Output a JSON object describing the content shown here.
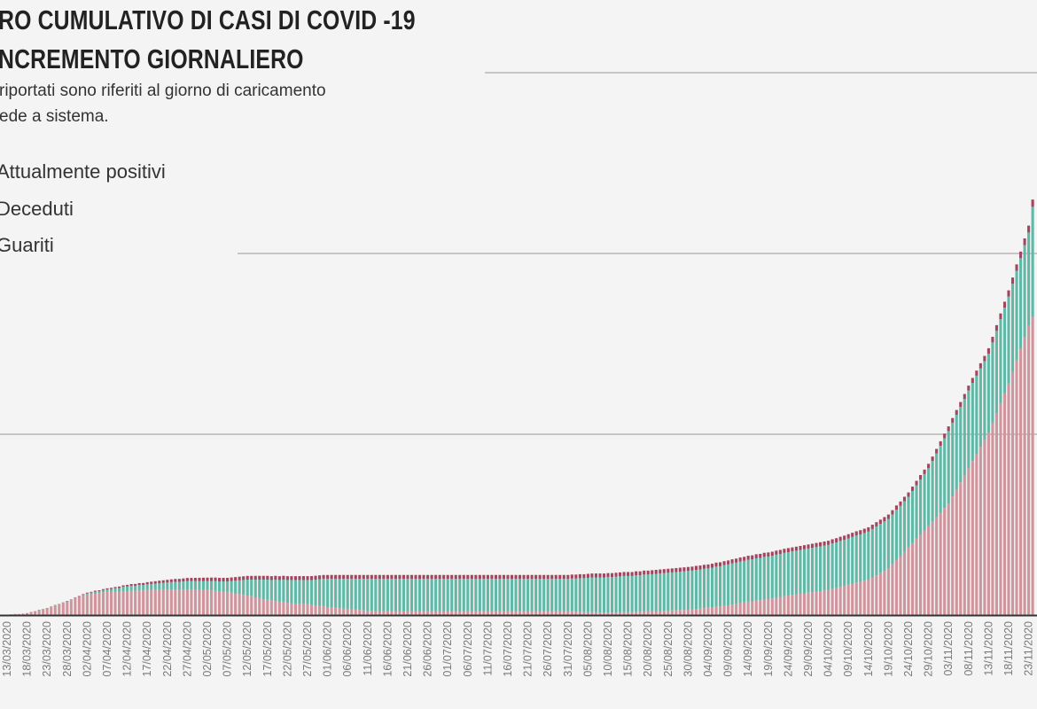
{
  "header": {
    "title_line1": "RO CUMULATIVO DI CASI DI COVID -19",
    "title_line2": "NCREMENTO GIORNALIERO",
    "subtitle_line1": "riportati sono riferiti al giorno di caricamento",
    "subtitle_line2": "ede a sistema."
  },
  "legend": [
    {
      "label": "Attualmente positivi",
      "color": "#cf949c"
    },
    {
      "label": "Deceduti",
      "color": "#a3455f"
    },
    {
      "label": "Guariti",
      "color": "#62b8a7"
    }
  ],
  "chart_data": {
    "type": "bar",
    "stacked": true,
    "stack_order_bottom_to_top": [
      "Attualmente positivi",
      "Guariti",
      "Deceduti"
    ],
    "grid": true,
    "ylim": [
      0,
      150000
    ],
    "y_gridlines": [
      50000,
      100000,
      150000
    ],
    "x_tick_labels": [
      "13/03/2020",
      "18/03/2020",
      "23/03/2020",
      "28/03/2020",
      "02/04/2020",
      "07/04/2020",
      "12/04/2020",
      "17/04/2020",
      "22/04/2020",
      "27/04/2020",
      "02/05/2020",
      "07/05/2020",
      "12/05/2020",
      "17/05/2020",
      "22/05/2020",
      "27/05/2020",
      "01/06/2020",
      "06/06/2020",
      "11/06/2020",
      "16/06/2020",
      "21/06/2020",
      "26/06/2020",
      "01/07/2020",
      "06/07/2020",
      "11/07/2020",
      "16/07/2020",
      "21/07/2020",
      "26/07/2020",
      "31/07/2020",
      "05/08/2020",
      "10/08/2020",
      "15/08/2020",
      "20/08/2020",
      "25/08/2020",
      "30/08/2020",
      "04/09/2020",
      "09/09/2020",
      "14/09/2020",
      "19/09/2020",
      "24/09/2020",
      "29/09/2020",
      "04/10/2020",
      "09/10/2020",
      "14/10/2020",
      "19/10/2020",
      "24/10/2020",
      "29/10/2020",
      "03/11/2020",
      "08/11/2020",
      "13/11/2020",
      "18/11/2020",
      "23/11/2020"
    ],
    "value_unit_multiplier": 1000,
    "series": [
      {
        "name": "Attualmente positivi",
        "color": "#cf949c",
        "values": [
          0.1,
          0.2,
          0.3,
          0.3,
          0.4,
          0.5,
          0.8,
          1.0,
          1.3,
          1.5,
          1.8,
          2.2,
          2.6,
          2.9,
          3.3,
          3.7,
          4.1,
          4.5,
          4.9,
          5.3,
          5.7,
          5.8,
          6.0,
          6.1,
          6.3,
          6.4,
          6.4,
          6.5,
          6.5,
          6.6,
          6.6,
          6.7,
          6.7,
          6.8,
          6.8,
          6.9,
          6.9,
          7.0,
          7.0,
          7.1,
          7.1,
          7.1,
          7.1,
          7.1,
          7.1,
          7.1,
          7.1,
          7.0,
          7.0,
          6.9,
          6.9,
          6.8,
          6.7,
          6.6,
          6.5,
          6.4,
          6.2,
          6.0,
          5.8,
          5.6,
          5.4,
          5.2,
          4.9,
          4.7,
          4.4,
          4.2,
          4.0,
          3.9,
          3.7,
          3.6,
          3.4,
          3.3,
          3.2,
          3.2,
          3.1,
          3.0,
          2.8,
          2.7,
          2.5,
          2.4,
          2.2,
          2.1,
          2.0,
          1.9,
          1.8,
          1.7,
          1.6,
          1.5,
          1.4,
          1.3,
          1.2,
          1.2,
          1.1,
          1.1,
          1.0,
          1.0,
          1.0,
          1.0,
          1.0,
          1.0,
          1.0,
          1.0,
          1.0,
          1.0,
          1.0,
          1.0,
          1.0,
          1.0,
          1.0,
          1.0,
          1.0,
          1.0,
          1.0,
          1.0,
          1.0,
          1.0,
          1.0,
          1.0,
          1.0,
          1.0,
          1.0,
          1.0,
          1.0,
          1.0,
          1.0,
          1.0,
          1.0,
          1.0,
          1.0,
          1.0,
          1.0,
          1.0,
          1.0,
          1.0,
          1.0,
          1.0,
          1.0,
          1.0,
          1.0,
          1.0,
          1.0,
          1.0,
          0.9,
          0.9,
          0.8,
          0.8,
          0.8,
          0.8,
          0.7,
          0.7,
          0.7,
          0.7,
          0.7,
          0.8,
          0.8,
          0.8,
          0.8,
          0.9,
          0.9,
          1.0,
          1.0,
          1.0,
          1.1,
          1.1,
          1.2,
          1.2,
          1.3,
          1.3,
          1.4,
          1.4,
          1.5,
          1.6,
          1.7,
          1.8,
          1.9,
          2.0,
          2.1,
          2.3,
          2.4,
          2.6,
          2.7,
          2.9,
          3.1,
          3.3,
          3.5,
          3.7,
          3.8,
          4.0,
          4.1,
          4.3,
          4.4,
          4.6,
          4.8,
          5.0,
          5.2,
          5.4,
          5.6,
          5.7,
          5.9,
          6.0,
          6.2,
          6.3,
          6.5,
          6.6,
          6.8,
          6.9,
          7.2,
          7.5,
          7.8,
          8.1,
          8.4,
          8.7,
          9.0,
          9.2,
          9.5,
          9.8,
          10.4,
          11.0,
          11.6,
          12.2,
          12.8,
          14.0,
          15.2,
          16.3,
          17.5,
          18.7,
          19.9,
          21.1,
          22.3,
          23.4,
          24.6,
          25.8,
          27.1,
          28.3,
          29.6,
          30.8,
          32.8,
          34.7,
          36.7,
          38.6,
          40.6,
          42.6,
          44.5,
          46.5,
          48.4,
          50.4,
          53.1,
          55.8,
          58.6,
          61.3,
          64.0,
          67.2,
          70.4,
          73.6,
          76.8,
          80.0,
          82.4
        ]
      },
      {
        "name": "Guariti",
        "color": "#62b8a7",
        "values": [
          0,
          0,
          0,
          0,
          0,
          0,
          0,
          0,
          0.1,
          0.1,
          0.1,
          0.1,
          0.1,
          0.1,
          0.1,
          0.1,
          0.1,
          0.2,
          0.2,
          0.3,
          0.3,
          0.4,
          0.5,
          0.5,
          0.6,
          0.7,
          0.8,
          0.9,
          1.0,
          1.2,
          1.3,
          1.4,
          1.4,
          1.5,
          1.5,
          1.6,
          1.7,
          1.7,
          1.8,
          1.8,
          1.9,
          2.0,
          2.1,
          2.1,
          2.2,
          2.3,
          2.3,
          2.4,
          2.4,
          2.5,
          2.5,
          2.6,
          2.7,
          2.7,
          2.8,
          2.9,
          3.2,
          3.5,
          3.8,
          4.1,
          4.4,
          4.6,
          4.9,
          5.1,
          5.4,
          5.6,
          5.7,
          5.9,
          6.0,
          6.2,
          6.3,
          6.4,
          6.5,
          6.5,
          6.6,
          6.7,
          6.9,
          7.1,
          7.4,
          7.6,
          7.8,
          7.9,
          8.0,
          8.1,
          8.2,
          8.3,
          8.4,
          8.5,
          8.6,
          8.7,
          8.8,
          8.8,
          8.9,
          8.9,
          9.0,
          9.0,
          9.0,
          9.0,
          9.0,
          9.0,
          9.0,
          9.0,
          9.0,
          9.0,
          9.0,
          9.0,
          9.0,
          9.0,
          9.0,
          9.0,
          9.0,
          9.0,
          9.0,
          9.0,
          9.0,
          9.0,
          9.0,
          9.0,
          9.0,
          9.0,
          9.0,
          9.0,
          9.0,
          9.0,
          9.0,
          9.0,
          9.0,
          9.0,
          9.0,
          9.0,
          9.0,
          9.0,
          9.0,
          9.0,
          9.0,
          9.0,
          9.0,
          9.0,
          9.0,
          9.0,
          9.0,
          9.1,
          9.2,
          9.3,
          9.4,
          9.5,
          9.6,
          9.6,
          9.7,
          9.7,
          9.8,
          9.8,
          9.9,
          9.9,
          10.0,
          10.0,
          10.0,
          10.1,
          10.1,
          10.2,
          10.2,
          10.3,
          10.3,
          10.4,
          10.4,
          10.5,
          10.5,
          10.6,
          10.6,
          10.7,
          10.7,
          10.7,
          10.8,
          10.8,
          10.9,
          10.9,
          11.0,
          11.1,
          11.1,
          11.2,
          11.3,
          11.4,
          11.4,
          11.5,
          11.5,
          11.6,
          11.6,
          11.7,
          11.7,
          11.8,
          11.8,
          11.8,
          11.9,
          11.9,
          12.0,
          12.0,
          12.0,
          12.1,
          12.1,
          12.2,
          12.2,
          12.3,
          12.3,
          12.4,
          12.4,
          12.5,
          12.6,
          12.6,
          12.7,
          12.7,
          12.8,
          12.9,
          13.0,
          13.1,
          13.2,
          13.3,
          13.4,
          13.5,
          13.6,
          13.7,
          13.8,
          13.8,
          13.9,
          13.9,
          14.0,
          14.0,
          14.4,
          14.8,
          15.2,
          15.6,
          16.0,
          16.8,
          17.6,
          18.5,
          19.3,
          20.1,
          20.4,
          20.7,
          20.9,
          21.2,
          21.5,
          21.6,
          21.7,
          21.7,
          21.8,
          21.9,
          22.3,
          22.8,
          23.2,
          23.7,
          24.1,
          24.4,
          24.8,
          25.1,
          25.5,
          25.8,
          30.5
        ]
      },
      {
        "name": "Deceduti",
        "color": "#a3455f",
        "values": [
          0,
          0,
          0,
          0,
          0,
          0.01,
          0.02,
          0.03,
          0.03,
          0.04,
          0.05,
          0.06,
          0.07,
          0.08,
          0.09,
          0.1,
          0.12,
          0.14,
          0.16,
          0.18,
          0.2,
          0.22,
          0.24,
          0.26,
          0.28,
          0.3,
          0.33,
          0.36,
          0.39,
          0.42,
          0.45,
          0.48,
          0.51,
          0.54,
          0.57,
          0.6,
          0.63,
          0.66,
          0.69,
          0.72,
          0.75,
          0.77,
          0.79,
          0.81,
          0.83,
          0.85,
          0.87,
          0.89,
          0.91,
          0.93,
          0.95,
          0.96,
          0.97,
          0.98,
          0.99,
          1.0,
          1.01,
          1.01,
          1.02,
          1.02,
          1.03,
          1.03,
          1.04,
          1.04,
          1.04,
          1.05,
          1.05,
          1.05,
          1.05,
          1.06,
          1.06,
          1.06,
          1.06,
          1.07,
          1.07,
          1.07,
          1.07,
          1.08,
          1.08,
          1.08,
          1.08,
          1.09,
          1.09,
          1.09,
          1.09,
          1.09,
          1.09,
          1.09,
          1.09,
          1.09,
          1.09,
          1.09,
          1.09,
          1.09,
          1.09,
          1.09,
          1.09,
          1.09,
          1.09,
          1.09,
          1.09,
          1.09,
          1.09,
          1.09,
          1.09,
          1.09,
          1.09,
          1.09,
          1.09,
          1.09,
          1.09,
          1.09,
          1.09,
          1.09,
          1.09,
          1.09,
          1.09,
          1.09,
          1.09,
          1.09,
          1.09,
          1.09,
          1.09,
          1.09,
          1.09,
          1.09,
          1.09,
          1.09,
          1.09,
          1.09,
          1.09,
          1.09,
          1.09,
          1.09,
          1.09,
          1.09,
          1.09,
          1.09,
          1.09,
          1.09,
          1.09,
          1.1,
          1.1,
          1.1,
          1.1,
          1.1,
          1.1,
          1.1,
          1.1,
          1.1,
          1.1,
          1.1,
          1.1,
          1.1,
          1.1,
          1.1,
          1.1,
          1.1,
          1.1,
          1.1,
          1.1,
          1.1,
          1.1,
          1.1,
          1.1,
          1.1,
          1.1,
          1.1,
          1.1,
          1.1,
          1.1,
          1.1,
          1.1,
          1.1,
          1.1,
          1.1,
          1.1,
          1.1,
          1.1,
          1.1,
          1.1,
          1.12,
          1.12,
          1.12,
          1.12,
          1.12,
          1.12,
          1.12,
          1.12,
          1.12,
          1.12,
          1.12,
          1.12,
          1.12,
          1.12,
          1.12,
          1.12,
          1.12,
          1.12,
          1.12,
          1.12,
          1.13,
          1.14,
          1.14,
          1.15,
          1.15,
          1.16,
          1.16,
          1.16,
          1.17,
          1.17,
          1.17,
          1.17,
          1.18,
          1.18,
          1.18,
          1.19,
          1.19,
          1.19,
          1.2,
          1.2,
          1.2,
          1.21,
          1.21,
          1.22,
          1.22,
          1.22,
          1.22,
          1.23,
          1.23,
          1.23,
          1.24,
          1.25,
          1.26,
          1.27,
          1.28,
          1.29,
          1.31,
          1.32,
          1.34,
          1.35,
          1.38,
          1.41,
          1.44,
          1.47,
          1.5,
          1.54,
          1.58,
          1.62,
          1.66,
          1.7,
          1.74,
          1.78,
          1.82,
          1.86,
          1.9,
          2.0
        ]
      }
    ]
  }
}
